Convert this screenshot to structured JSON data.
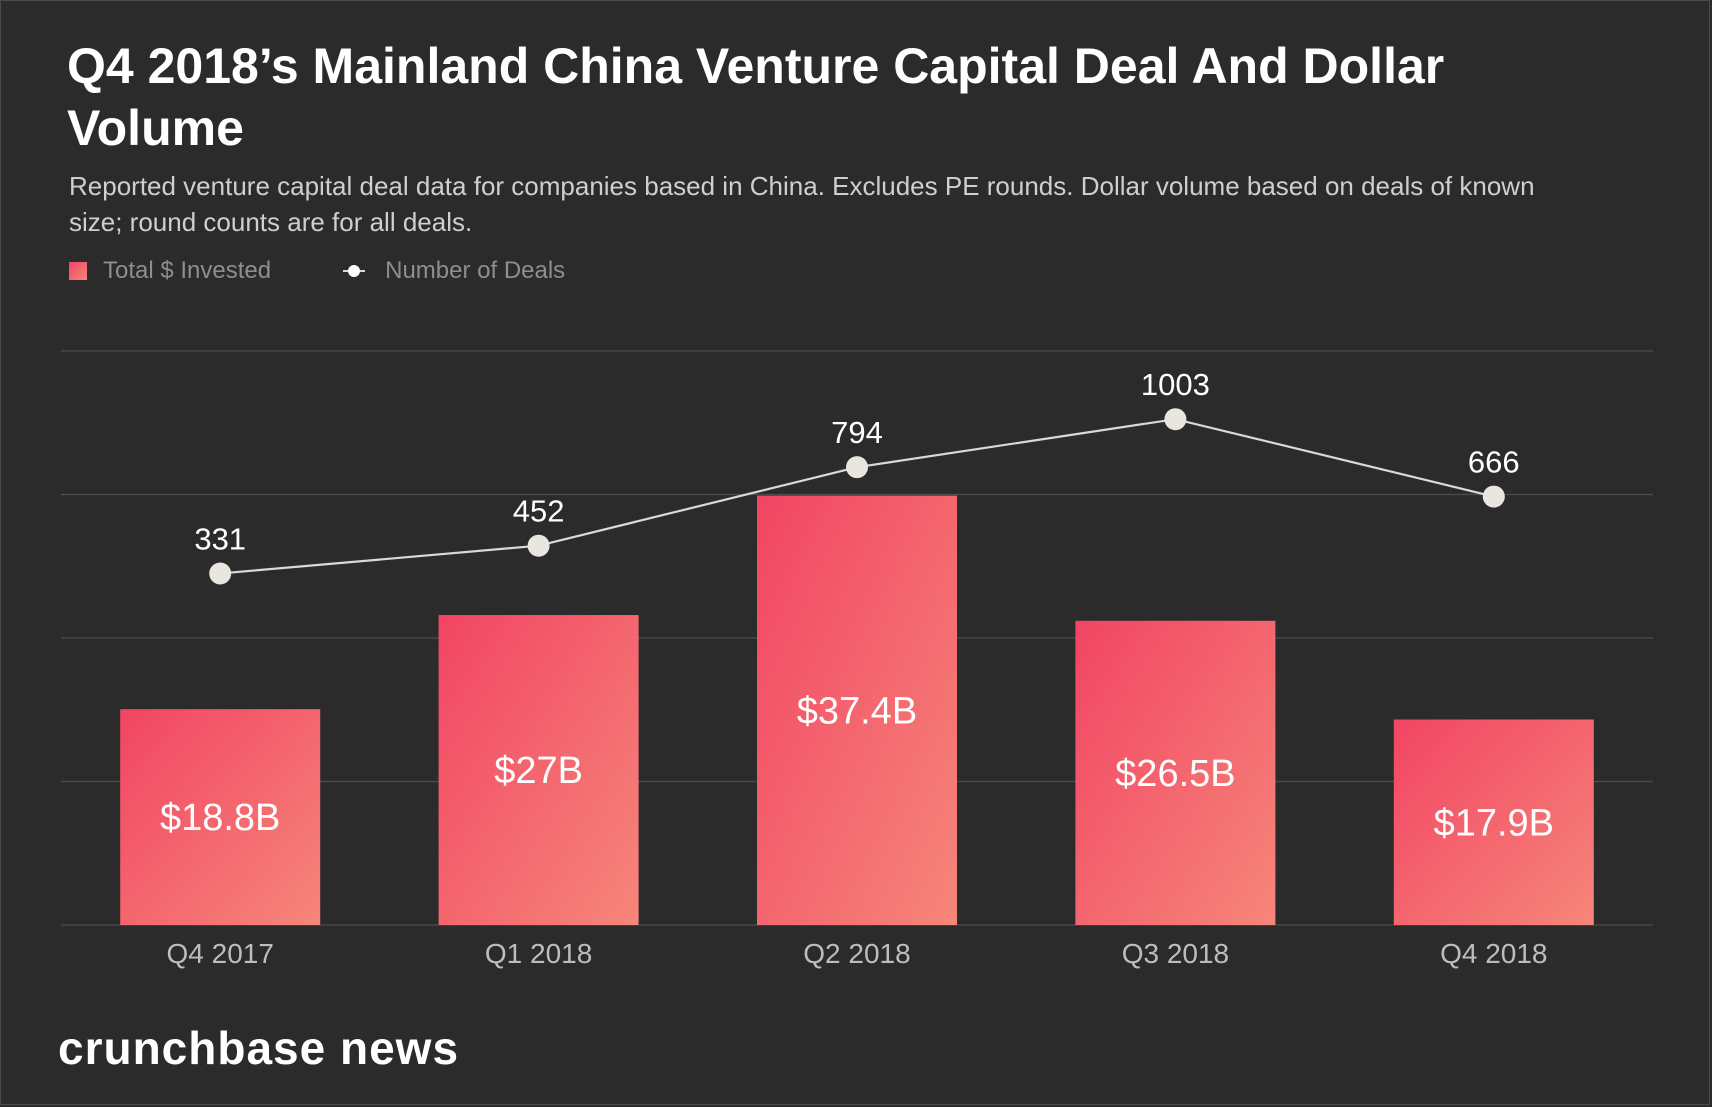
{
  "chart_data": {
    "type": "bar",
    "title": "Q4 2018’s Mainland China Venture Capital Deal And Dollar Volume",
    "subtitle": "Reported venture capital deal data for companies based in China. Excludes PE rounds. Dollar volume based on deals of known size; round counts are for all deals.",
    "categories": [
      "Q4 2017",
      "Q1 2018",
      "Q2 2018",
      "Q3 2018",
      "Q4 2018"
    ],
    "series": [
      {
        "name": "Total $ Invested",
        "type": "bar",
        "values": [
          18.8,
          27,
          37.4,
          26.5,
          17.9
        ],
        "labels": [
          "$18.8B",
          "$27B",
          "$37.4B",
          "$26.5B",
          "$17.9B"
        ]
      },
      {
        "name": "Number of Deals",
        "type": "line",
        "values": [
          331,
          452,
          794,
          1003,
          666
        ],
        "labels": [
          "331",
          "452",
          "794",
          "1003",
          "666"
        ]
      }
    ],
    "legend": {
      "position": "top-left",
      "bar_label": "Total $ Invested",
      "line_label": "Number of Deals"
    },
    "grid": true,
    "ylim_bar": [
      0,
      50
    ],
    "ylim_line": [
      -1200,
      1300
    ],
    "colors": {
      "bar_start": "#f24563",
      "bar_end": "#f6867a",
      "line": "#d9d9d9",
      "marker": "#e9e6e0",
      "grid": "#4d4d4d"
    }
  },
  "brand": "crunchbase news"
}
